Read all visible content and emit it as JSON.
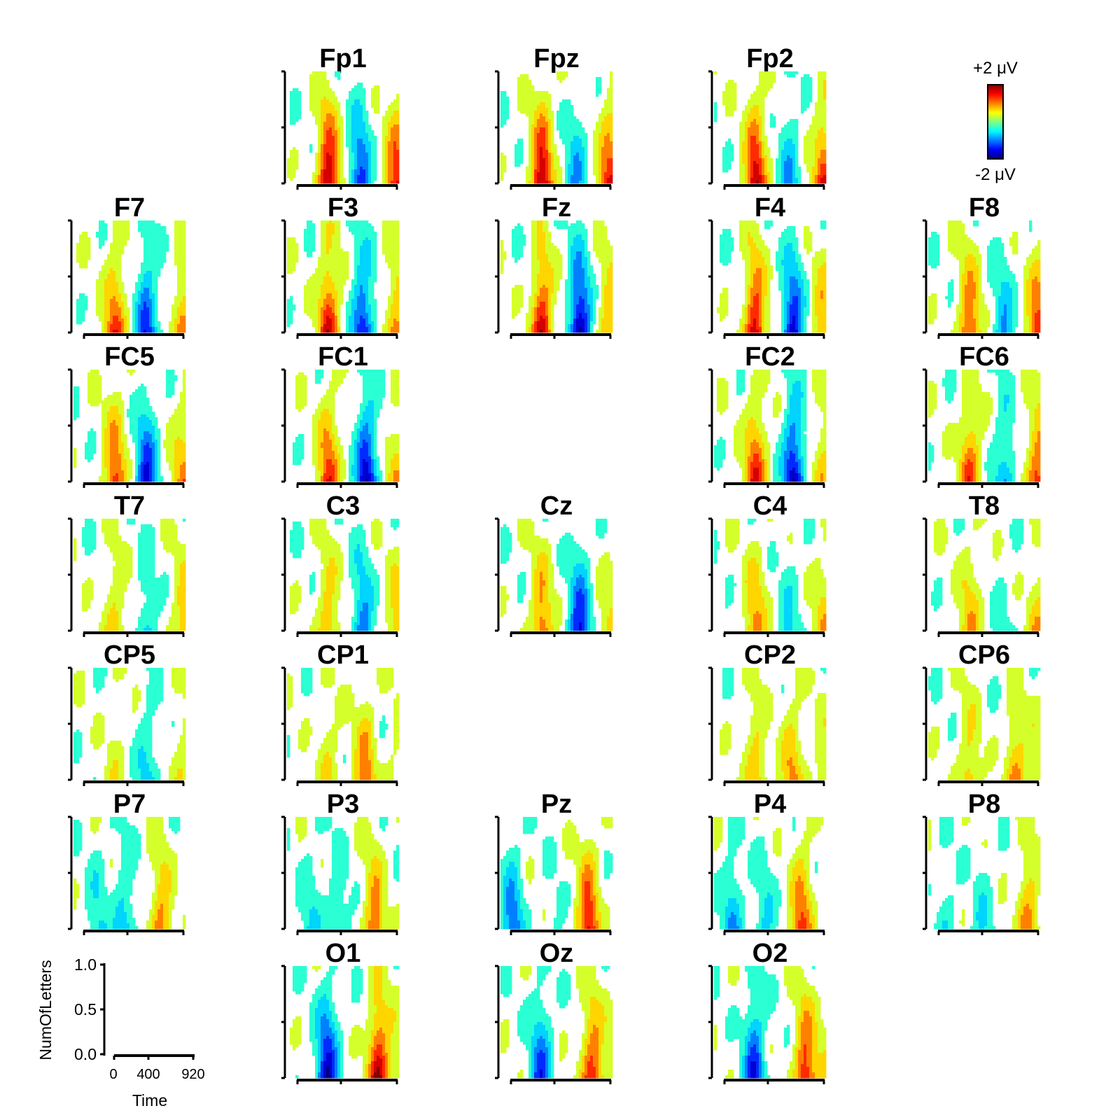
{
  "chart_data": {
    "type": "heatmap",
    "description_units": "time (ms) x NumOfLetters, color = ERP amplitude",
    "colorbar": {
      "max_label": "+2 μV",
      "min_label": "-2 μV",
      "range": [
        -2,
        2
      ],
      "colormap": "jet"
    },
    "key": {
      "xlabel": "Time",
      "ylabel": "NumOfLetters",
      "xticks": [
        "0",
        "400",
        "920"
      ],
      "yticks": [
        "1.0",
        "0.5",
        "0.0"
      ],
      "xlim": [
        0,
        920
      ],
      "ylim": [
        0,
        1
      ]
    },
    "channels": [
      {
        "name": "Fp1",
        "row": 0,
        "col": 1,
        "peaks": [
          [
            340,
            2.0
          ],
          [
            600,
            -1.4
          ],
          [
            900,
            1.6
          ]
        ]
      },
      {
        "name": "Fpz",
        "row": 0,
        "col": 2,
        "peaks": [
          [
            340,
            2.0
          ],
          [
            620,
            -0.9
          ],
          [
            900,
            1.6
          ]
        ]
      },
      {
        "name": "Fp2",
        "row": 0,
        "col": 3,
        "peaks": [
          [
            340,
            1.9
          ],
          [
            620,
            -0.9
          ],
          [
            900,
            1.5
          ]
        ]
      },
      {
        "name": "F7",
        "row": 1,
        "col": 0,
        "peaks": [
          [
            340,
            1.4
          ],
          [
            600,
            -1.5
          ],
          [
            900,
            1.0
          ]
        ]
      },
      {
        "name": "F3",
        "row": 1,
        "col": 1,
        "peaks": [
          [
            340,
            1.7
          ],
          [
            620,
            -1.6
          ],
          [
            900,
            1.0
          ]
        ]
      },
      {
        "name": "Fz",
        "row": 1,
        "col": 2,
        "peaks": [
          [
            340,
            1.8
          ],
          [
            650,
            -2.0
          ],
          [
            900,
            1.0
          ]
        ]
      },
      {
        "name": "F4",
        "row": 1,
        "col": 3,
        "peaks": [
          [
            340,
            1.8
          ],
          [
            650,
            -1.7
          ],
          [
            900,
            1.0
          ]
        ]
      },
      {
        "name": "F8",
        "row": 1,
        "col": 4,
        "peaks": [
          [
            340,
            1.4
          ],
          [
            620,
            -0.9
          ],
          [
            900,
            1.5
          ]
        ]
      },
      {
        "name": "FC5",
        "row": 2,
        "col": 0,
        "peaks": [
          [
            340,
            1.4
          ],
          [
            600,
            -1.6
          ],
          [
            900,
            1.0
          ]
        ]
      },
      {
        "name": "FC1",
        "row": 2,
        "col": 1,
        "peaks": [
          [
            340,
            1.5
          ],
          [
            650,
            -1.9
          ],
          [
            900,
            0.8
          ]
        ]
      },
      {
        "name": "FC2",
        "row": 2,
        "col": 3,
        "peaks": [
          [
            340,
            1.6
          ],
          [
            650,
            -1.9
          ],
          [
            900,
            0.8
          ]
        ]
      },
      {
        "name": "FC6",
        "row": 2,
        "col": 4,
        "peaks": [
          [
            340,
            1.4
          ],
          [
            620,
            -0.9
          ],
          [
            900,
            1.4
          ]
        ]
      },
      {
        "name": "T7",
        "row": 3,
        "col": 0,
        "peaks": [
          [
            340,
            0.7
          ],
          [
            600,
            -0.6
          ],
          [
            900,
            0.8
          ]
        ]
      },
      {
        "name": "C3",
        "row": 3,
        "col": 1,
        "peaks": [
          [
            340,
            0.9
          ],
          [
            620,
            -1.1
          ],
          [
            900,
            0.8
          ]
        ]
      },
      {
        "name": "Cz",
        "row": 3,
        "col": 2,
        "peaks": [
          [
            340,
            1.2
          ],
          [
            650,
            -1.6
          ],
          [
            900,
            0.6
          ]
        ]
      },
      {
        "name": "C4",
        "row": 3,
        "col": 3,
        "peaks": [
          [
            340,
            1.1
          ],
          [
            620,
            -0.6
          ],
          [
            900,
            0.8
          ]
        ]
      },
      {
        "name": "T8",
        "row": 3,
        "col": 4,
        "peaks": [
          [
            340,
            0.9
          ],
          [
            620,
            -0.3
          ],
          [
            900,
            0.8
          ]
        ]
      },
      {
        "name": "CP5",
        "row": 4,
        "col": 0,
        "peaks": [
          [
            340,
            0.4
          ],
          [
            600,
            -0.7
          ],
          [
            900,
            0.5
          ]
        ]
      },
      {
        "name": "CP1",
        "row": 4,
        "col": 1,
        "peaks": [
          [
            340,
            0.6
          ],
          [
            640,
            1.2
          ],
          [
            900,
            0.3
          ]
        ]
      },
      {
        "name": "CP2",
        "row": 4,
        "col": 3,
        "peaks": [
          [
            340,
            0.9
          ],
          [
            640,
            1.0
          ],
          [
            900,
            0.5
          ]
        ]
      },
      {
        "name": "CP6",
        "row": 4,
        "col": 4,
        "peaks": [
          [
            340,
            0.8
          ],
          [
            720,
            1.0
          ],
          [
            900,
            0.5
          ]
        ]
      },
      {
        "name": "P7",
        "row": 5,
        "col": 0,
        "peaks": [
          [
            200,
            -0.6
          ],
          [
            420,
            -0.8
          ],
          [
            720,
            1.1
          ]
        ]
      },
      {
        "name": "P3",
        "row": 5,
        "col": 1,
        "peaks": [
          [
            200,
            -0.6
          ],
          [
            420,
            -0.6
          ],
          [
            720,
            1.2
          ]
        ]
      },
      {
        "name": "Pz",
        "row": 5,
        "col": 2,
        "peaks": [
          [
            100,
            -1.2
          ],
          [
            450,
            -0.2
          ],
          [
            720,
            1.7
          ]
        ]
      },
      {
        "name": "P4",
        "row": 5,
        "col": 3,
        "peaks": [
          [
            150,
            -0.9
          ],
          [
            420,
            -0.6
          ],
          [
            720,
            1.4
          ]
        ]
      },
      {
        "name": "P8",
        "row": 5,
        "col": 4,
        "peaks": [
          [
            150,
            -0.4
          ],
          [
            450,
            -0.5
          ],
          [
            820,
            1.1
          ]
        ]
      },
      {
        "name": "O1",
        "row": 6,
        "col": 1,
        "peaks": [
          [
            330,
            -1.9
          ],
          [
            750,
            1.9
          ],
          [
            900,
            0.4
          ]
        ]
      },
      {
        "name": "Oz",
        "row": 6,
        "col": 2,
        "peaks": [
          [
            330,
            -1.4
          ],
          [
            750,
            1.5
          ],
          [
            900,
            0.4
          ]
        ]
      },
      {
        "name": "O2",
        "row": 6,
        "col": 3,
        "peaks": [
          [
            330,
            -1.6
          ],
          [
            750,
            1.6
          ],
          [
            900,
            0.4
          ]
        ]
      }
    ]
  }
}
